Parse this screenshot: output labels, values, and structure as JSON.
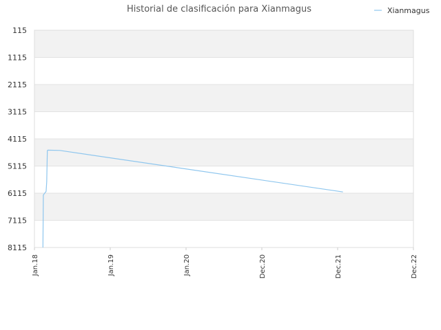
{
  "chart_data": {
    "type": "line",
    "title": "Historial de clasificación para Xianmagus",
    "xlabel": "",
    "ylabel": "",
    "y_inverted": true,
    "ylim": [
      8115,
      115
    ],
    "y_ticks": [
      "115",
      "1115",
      "2115",
      "3115",
      "4115",
      "5115",
      "6115",
      "7115",
      "8115"
    ],
    "x_ticks": [
      "Jan.18",
      "Jan.19",
      "Jan.20",
      "Dec.20",
      "Dec.21",
      "Dec.22"
    ],
    "xlim": [
      "2018-01",
      "2022-12"
    ],
    "grid": true,
    "legend_position": "top-right",
    "series": [
      {
        "name": "Xianmagus",
        "color": "#8ec6ee",
        "points": [
          {
            "x": "2018-02-10",
            "y": 8115
          },
          {
            "x": "2018-02-12",
            "y": 6180
          },
          {
            "x": "2018-02-25",
            "y": 6050
          },
          {
            "x": "2018-02-28",
            "y": 5700
          },
          {
            "x": "2018-03-03",
            "y": 4550
          },
          {
            "x": "2018-03-05",
            "y": 4530
          },
          {
            "x": "2018-05-01",
            "y": 4540
          },
          {
            "x": "2022-01-01",
            "y": 6070
          }
        ]
      }
    ]
  }
}
